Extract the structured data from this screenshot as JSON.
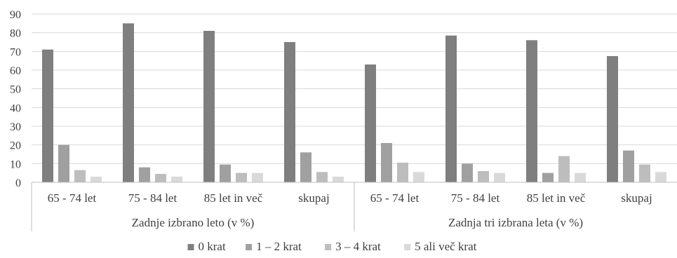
{
  "chart_data": {
    "type": "bar",
    "ylim": [
      0,
      90
    ],
    "yticks": [
      0,
      10,
      20,
      30,
      40,
      50,
      60,
      70,
      80,
      90
    ],
    "grid": true,
    "legend_position": "bottom",
    "groups": [
      {
        "label": "Zadnje izbrano leto (v %)",
        "categories": [
          "65 - 74 let",
          "75 - 84 let",
          "85 let in več",
          "skupaj"
        ]
      },
      {
        "label": "Zadnja tri izbrana leta (v %)",
        "categories": [
          "65 - 74 let",
          "75 - 84 let",
          "85 let in več",
          "skupaj"
        ]
      }
    ],
    "series": [
      {
        "name": "0 krat",
        "color": "#7f7f7f",
        "values": [
          71,
          85,
          81,
          75,
          63,
          78.5,
          76,
          67.5
        ]
      },
      {
        "name": "1 – 2 krat",
        "color": "#a0a0a0",
        "values": [
          20,
          8,
          9.5,
          16,
          21,
          10,
          5,
          17
        ]
      },
      {
        "name": "3 – 4 krat",
        "color": "#bdbdbd",
        "values": [
          6.5,
          4.5,
          5,
          5.5,
          10.5,
          6,
          14,
          9.5
        ]
      },
      {
        "name": "5 ali več krat",
        "color": "#d9d9d9",
        "values": [
          3,
          3,
          5,
          3,
          5.5,
          5,
          5,
          5.5
        ]
      }
    ]
  }
}
